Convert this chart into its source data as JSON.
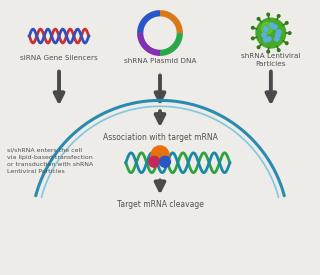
{
  "bg_color": "#eeece8",
  "arrow_color": "#4a4a4a",
  "arc_color_outer": "#2a8ab0",
  "arc_color_inner": "#50b8d8",
  "label_sirna": "siRNA Gene Silencers",
  "label_shrna_plasmid": "shRNA Plasmid DNA",
  "label_shrna_lentiviral": "shRNA Lentiviral\nParticles",
  "label_association": "Association with target mRNA",
  "label_cleavage": "Target mRNA cleavage",
  "label_cell_entry": "si/shRNA enters the cell\nvia lipid-based transfection\nor transduction with shRNA\nLentiviral Particles",
  "text_color": "#505050",
  "dna_red": "#cc3030",
  "dna_blue": "#3050c0",
  "dna_green": "#30a040",
  "dna_teal": "#1888a8",
  "plasmid_colors": [
    "#8030b0",
    "#2858c8",
    "#d87818",
    "#28a848"
  ],
  "lentiviral_color": "#48a828",
  "lentiviral_spot_color": "#58b0e0",
  "enzyme_orange": "#e87010",
  "enzyme_pink": "#c82858",
  "enzyme_blue": "#2858c0"
}
